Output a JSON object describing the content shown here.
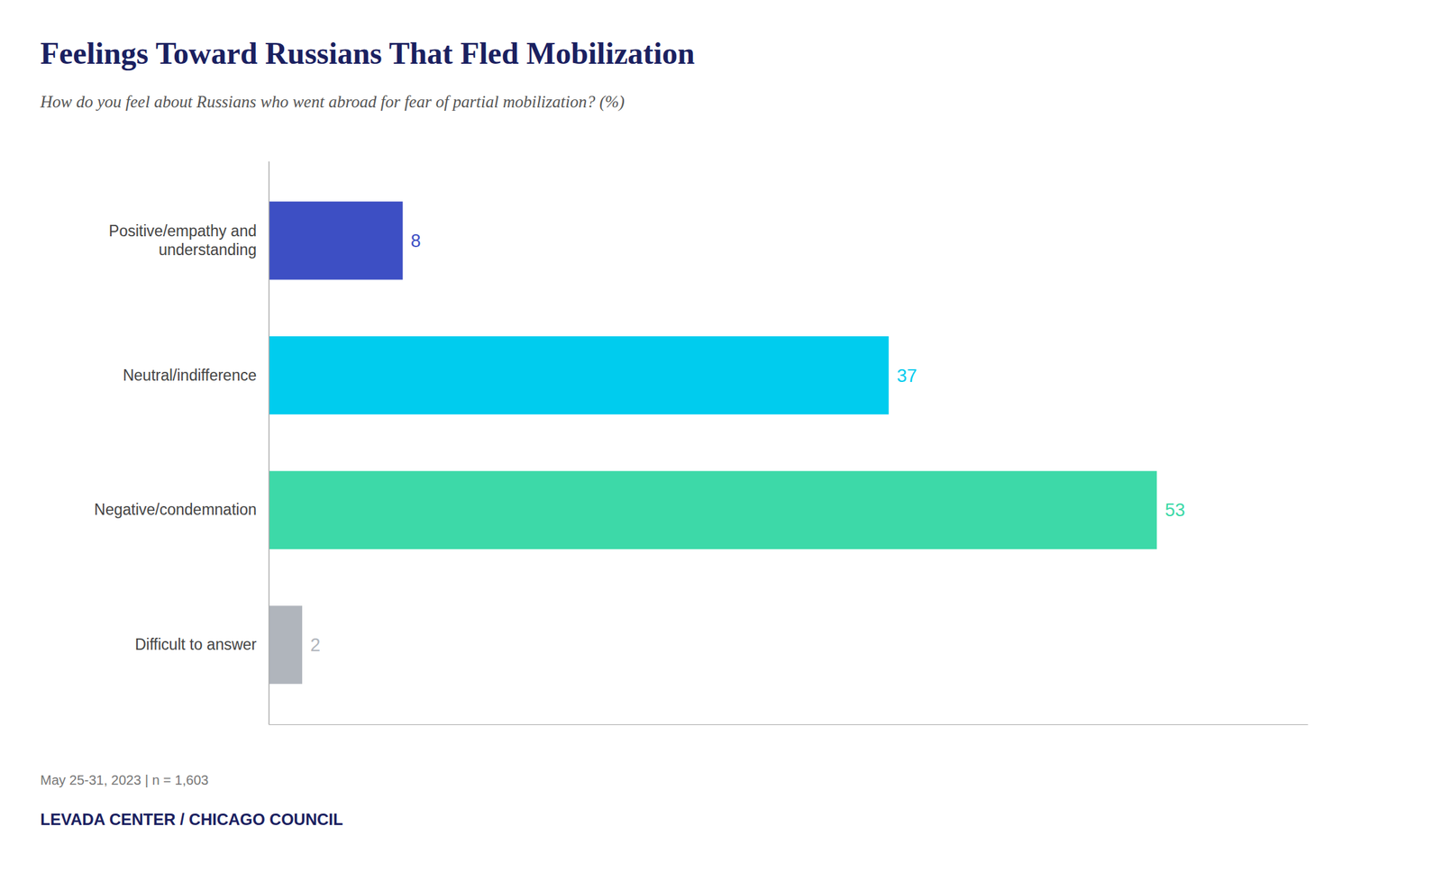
{
  "chart_data": {
    "type": "bar",
    "orientation": "horizontal",
    "title": "Feelings Toward Russians That Fled Mobilization",
    "subtitle": "How do you feel about Russians who went abroad for fear of partial mobilization? (%)",
    "categories": [
      "Positive/empathy and\nunderstanding",
      "Neutral/indifference",
      "Negative/condemnation",
      "Difficult to answer"
    ],
    "values": [
      8,
      37,
      53,
      2
    ],
    "colors": [
      "#3d4fc4",
      "#00ccee",
      "#3dd9a8",
      "#b0b5bc"
    ],
    "xlim": [
      0,
      62
    ],
    "data_labels": true,
    "tick_labels": "y",
    "annotations": [
      "May 25-31, 2023 | n = 1,603",
      "LEVADA CENTER / CHICAGO COUNCIL"
    ]
  }
}
